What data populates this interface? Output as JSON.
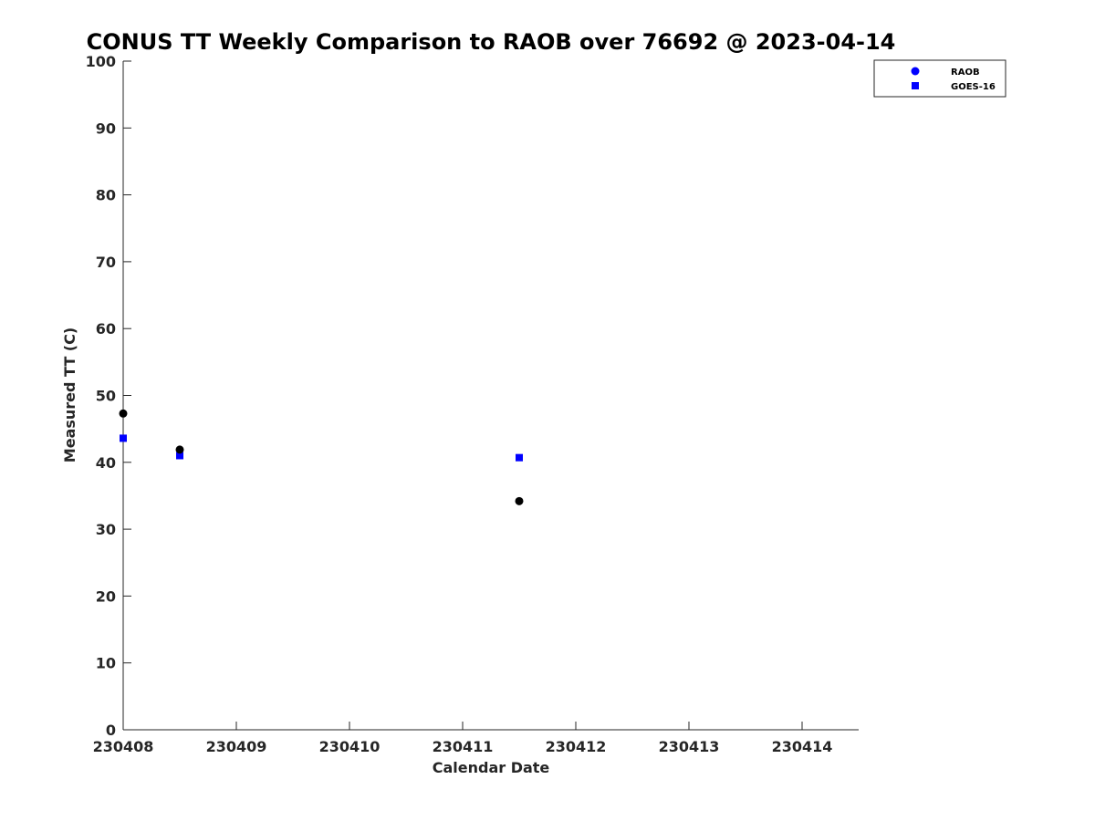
{
  "chart_data": {
    "type": "scatter",
    "title": "CONUS TT Weekly Comparison to RAOB over 76692 @ 2023-04-14",
    "xlabel": "Calendar Date",
    "ylabel": "Measured TT (C)",
    "xlim": [
      230408,
      230414.5
    ],
    "ylim": [
      0,
      100
    ],
    "x_ticks": [
      230408,
      230409,
      230410,
      230411,
      230412,
      230413,
      230414
    ],
    "x_tick_labels": [
      "230408",
      "230409",
      "230410",
      "230411",
      "230412",
      "230413",
      "230414"
    ],
    "y_ticks": [
      0,
      10,
      20,
      30,
      40,
      50,
      60,
      70,
      80,
      90,
      100
    ],
    "y_tick_labels": [
      "0",
      "10",
      "20",
      "30",
      "40",
      "50",
      "60",
      "70",
      "80",
      "90",
      "100"
    ],
    "grid": false,
    "legend_position": "top-right",
    "series": [
      {
        "name": "RAOB",
        "marker": "circle",
        "legend_color": "#0000ff",
        "color": "#000000",
        "points": [
          {
            "x": 230408,
            "y": 47.3
          },
          {
            "x": 230408.5,
            "y": 41.9
          },
          {
            "x": 230411.5,
            "y": 34.2
          }
        ]
      },
      {
        "name": "GOES-16",
        "marker": "square",
        "legend_color": "#0000ff",
        "color": "#0000ff",
        "points": [
          {
            "x": 230408,
            "y": 43.6
          },
          {
            "x": 230408.5,
            "y": 41.0
          },
          {
            "x": 230411.5,
            "y": 40.7
          }
        ]
      }
    ]
  }
}
